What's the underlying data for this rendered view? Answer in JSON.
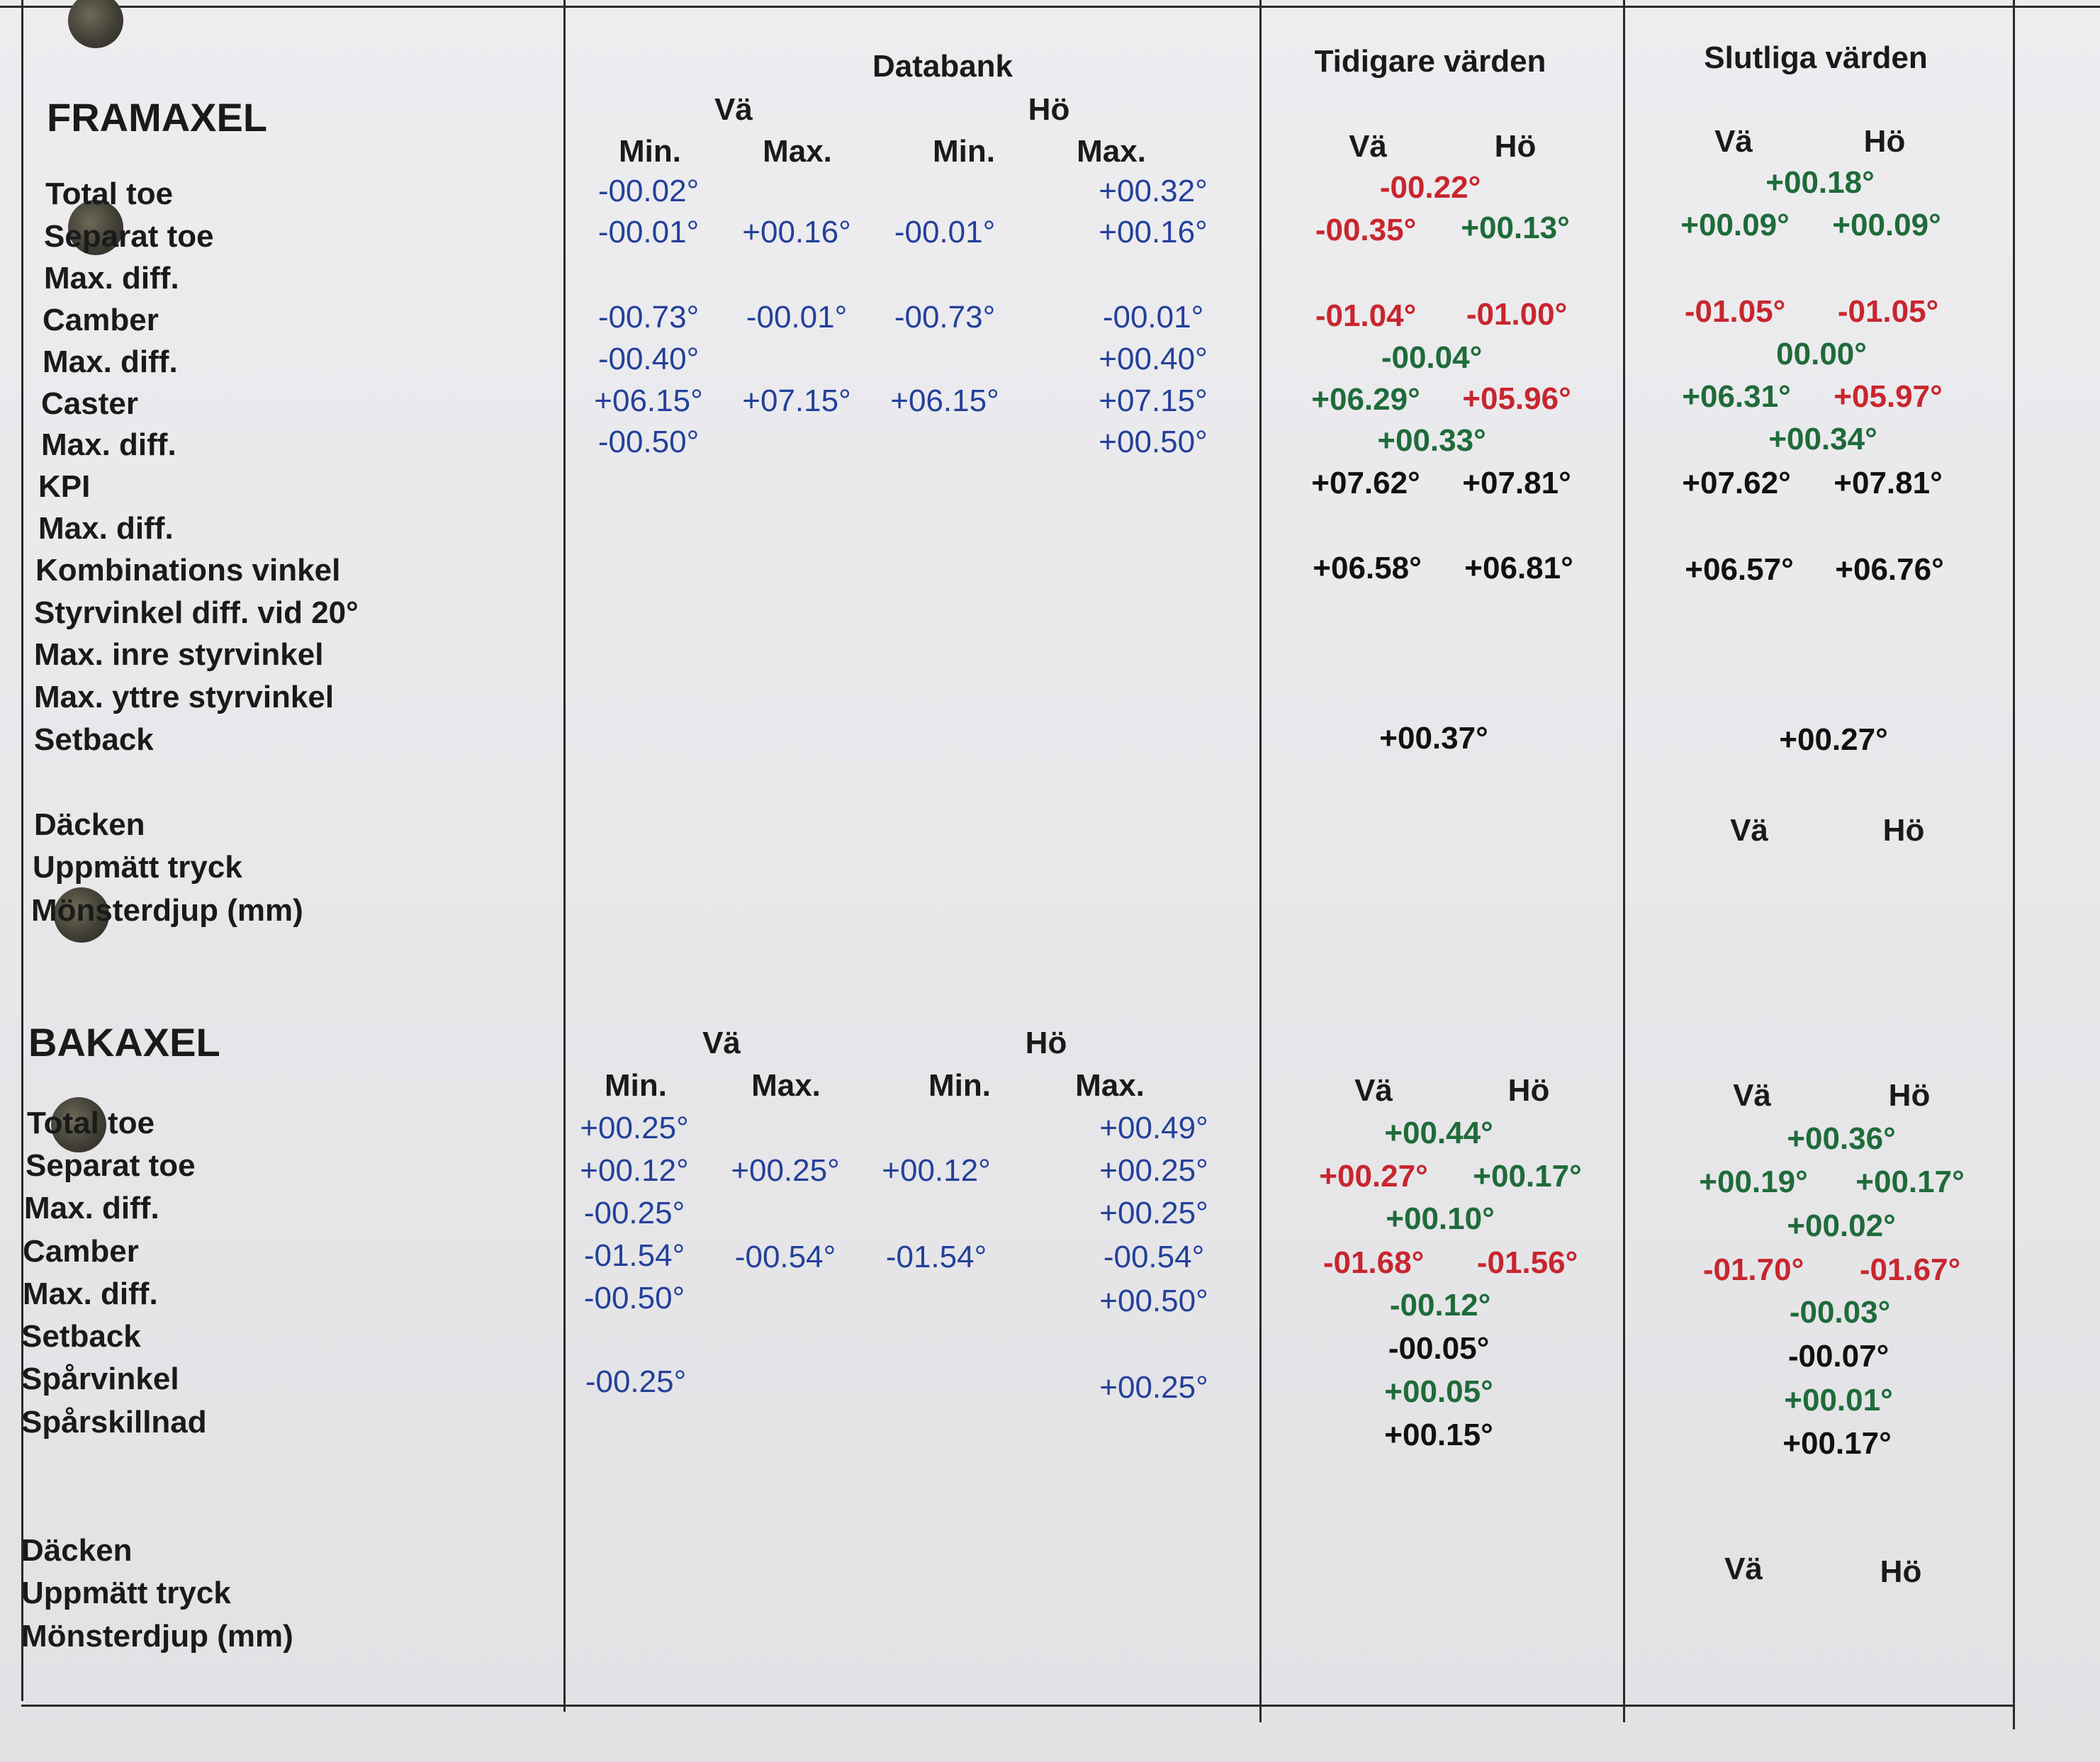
{
  "sections": {
    "front_title": "FRAMAXEL",
    "rear_title": "BAKAXEL"
  },
  "headers": {
    "databank": "Databank",
    "previous": "Tidigare värden",
    "final": "Slutliga värden",
    "left": "Vä",
    "right": "Hö",
    "min": "Min.",
    "max": "Max."
  },
  "front_labels": {
    "total_toe": "Total toe",
    "separat_toe": "Separat toe",
    "max_diff_1": "Max. diff.",
    "camber": "Camber",
    "max_diff_2": "Max. diff.",
    "caster": "Caster",
    "max_diff_3": "Max. diff.",
    "kpi": "KPI",
    "max_diff_4": "Max. diff.",
    "kombinations": "Kombinations vinkel",
    "styrvinkel": "Styrvinkel diff. vid 20°",
    "inre": "Max. inre styrvinkel",
    "yttre": "Max. yttre styrvinkel",
    "setback": "Setback",
    "tires": "Däcken",
    "pressure": "Uppmätt tryck",
    "tread": "Mönsterdjup (mm)"
  },
  "rear_labels": {
    "total_toe": "Total toe",
    "separat_toe": "Separat toe",
    "max_diff_1": "Max. diff.",
    "camber": "Camber",
    "max_diff_2": "Max. diff.",
    "setback": "Setback",
    "sparvinkel": "Spårvinkel",
    "sparskillnad": "Spårskillnad",
    "tires": "Däcken",
    "pressure": "Uppmätt tryck",
    "tread": "Mönsterdjup (mm)"
  },
  "front_databank": {
    "total_toe": {
      "min_l": "-00.02°",
      "max_r": "+00.32°"
    },
    "separat_toe": {
      "min_l": "-00.01°",
      "max_l": "+00.16°",
      "min_r": "-00.01°",
      "max_r": "+00.16°"
    },
    "camber": {
      "min_l": "-00.73°",
      "max_l": "-00.01°",
      "min_r": "-00.73°",
      "max_r": "-00.01°"
    },
    "camber_diff": {
      "min_l": "-00.40°",
      "max_r": "+00.40°"
    },
    "caster": {
      "min_l": "+06.15°",
      "max_l": "+07.15°",
      "min_r": "+06.15°",
      "max_r": "+07.15°"
    },
    "caster_diff": {
      "min_l": "-00.50°",
      "max_r": "+00.50°"
    }
  },
  "front_previous": {
    "total_toe": "-00.22°",
    "separat_toe_l": "-00.35°",
    "separat_toe_r": "+00.13°",
    "camber_l": "-01.04°",
    "camber_r": "-01.00°",
    "camber_diff": "-00.04°",
    "caster_l": "+06.29°",
    "caster_r": "+05.96°",
    "caster_diff": "+00.33°",
    "kpi_l": "+07.62°",
    "kpi_r": "+07.81°",
    "komb_l": "+06.58°",
    "komb_r": "+06.81°",
    "setback": "+00.37°"
  },
  "front_final": {
    "total_toe": "+00.18°",
    "separat_toe_l": "+00.09°",
    "separat_toe_r": "+00.09°",
    "camber_l": "-01.05°",
    "camber_r": "-01.05°",
    "camber_diff": "00.00°",
    "caster_l": "+06.31°",
    "caster_r": "+05.97°",
    "caster_diff": "+00.34°",
    "kpi_l": "+07.62°",
    "kpi_r": "+07.81°",
    "komb_l": "+06.57°",
    "komb_r": "+06.76°",
    "setback": "+00.27°"
  },
  "rear_databank": {
    "total_toe": {
      "min_l": "+00.25°",
      "max_r": "+00.49°"
    },
    "separat_toe": {
      "min_l": "+00.12°",
      "max_l": "+00.25°",
      "min_r": "+00.12°",
      "max_r": "+00.25°"
    },
    "toe_diff": {
      "min_l": "-00.25°",
      "max_r": "+00.25°"
    },
    "camber": {
      "min_l": "-01.54°",
      "max_l": "-00.54°",
      "min_r": "-01.54°",
      "max_r": "-00.54°"
    },
    "camber_diff": {
      "min_l": "-00.50°",
      "max_r": "+00.50°"
    },
    "sparvinkel": {
      "min_l": "-00.25°",
      "max_r": "+00.25°"
    }
  },
  "rear_previous": {
    "total_toe": "+00.44°",
    "separat_toe_l": "+00.27°",
    "separat_toe_r": "+00.17°",
    "toe_diff": "+00.10°",
    "camber_l": "-01.68°",
    "camber_r": "-01.56°",
    "camber_diff": "-00.12°",
    "setback": "-00.05°",
    "sparvinkel": "+00.05°",
    "sparskillnad": "+00.15°"
  },
  "rear_final": {
    "total_toe": "+00.36°",
    "separat_toe_l": "+00.19°",
    "separat_toe_r": "+00.17°",
    "toe_diff": "+00.02°",
    "camber_l": "-01.70°",
    "camber_r": "-01.67°",
    "camber_diff": "-00.03°",
    "setback": "-00.07°",
    "sparvinkel": "+00.01°",
    "sparskillnad": "+00.17°"
  },
  "colors": {
    "databank": "#24409a",
    "out_of_range": "#c8262e",
    "in_range": "#1f6b3a",
    "neutral": "#111111"
  }
}
